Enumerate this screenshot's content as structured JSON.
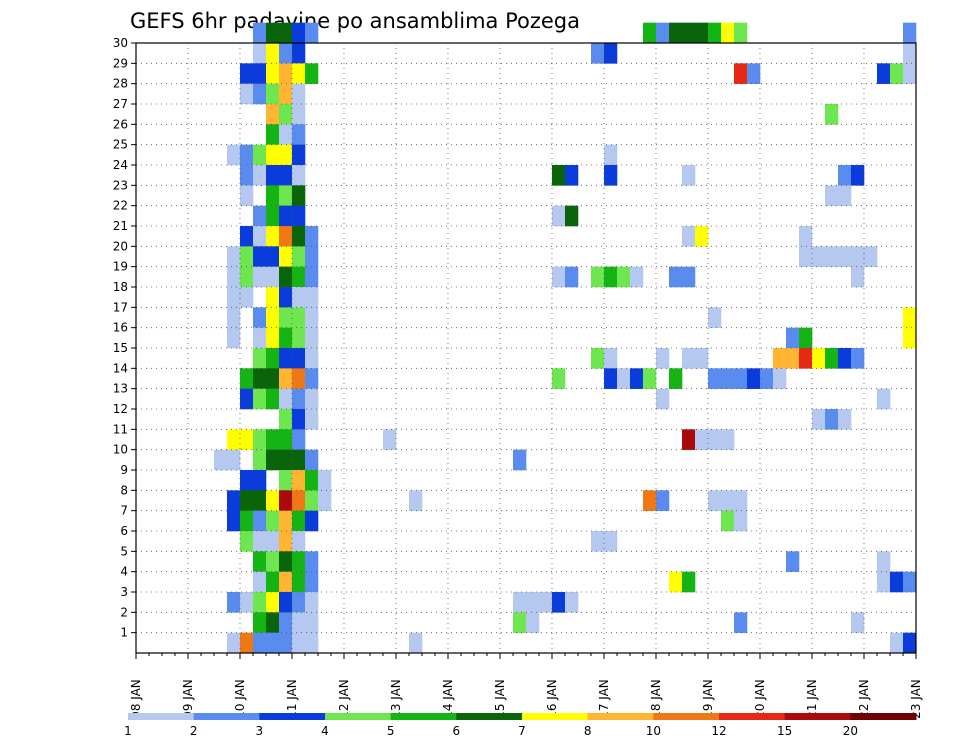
{
  "chart_data": {
    "type": "heatmap",
    "title": "GEFS 6hr padavine po ansamblima Pozega",
    "xlabel": "",
    "ylabel": "",
    "x_ticks": [
      "08 JAN",
      "09 JAN",
      "10 JAN",
      "11 JAN",
      "12 JAN",
      "13 JAN",
      "14 JAN",
      "15 JAN",
      "16 JAN",
      "17 JAN",
      "18 JAN",
      "19 JAN",
      "20 JAN",
      "21 JAN",
      "22 JAN",
      "23 JAN"
    ],
    "xlim": [
      0,
      60
    ],
    "y_ticks": [
      1,
      2,
      3,
      4,
      5,
      6,
      7,
      8,
      9,
      10,
      11,
      12,
      13,
      14,
      15,
      16,
      17,
      18,
      19,
      20,
      21,
      22,
      23,
      24,
      25,
      26,
      27,
      28,
      29,
      30
    ],
    "ylim": [
      0,
      30
    ],
    "grid": true,
    "legend": {
      "placement": "bottom",
      "labels": [
        "1",
        "2",
        "3",
        "4",
        "5",
        "6",
        "7",
        "8",
        "10",
        "12",
        "15",
        "20"
      ],
      "colors": [
        "#b4c8f0",
        "#5a8cf0",
        "#0a3cdc",
        "#6ee650",
        "#14b414",
        "#0a640a",
        "#ffff00",
        "#ffb432",
        "#f07814",
        "#e62814",
        "#aa0a0a",
        "#6e0000"
      ]
    },
    "levels": [
      {
        "level": 0,
        "color": "#b4c8f0"
      },
      {
        "level": 1,
        "color": "#5a8cf0"
      },
      {
        "level": 2,
        "color": "#0a3cdc"
      },
      {
        "level": 3,
        "color": "#6ee650"
      },
      {
        "level": 4,
        "color": "#14b414"
      },
      {
        "level": 5,
        "color": "#0a640a"
      },
      {
        "level": 6,
        "color": "#ffff00"
      },
      {
        "level": 7,
        "color": "#ffb432"
      },
      {
        "level": 8,
        "color": "#f07814"
      },
      {
        "level": 9,
        "color": "#e62814"
      },
      {
        "level": 10,
        "color": "#aa0a0a"
      },
      {
        "level": 11,
        "color": "#6e0000"
      }
    ],
    "members": [
      {
        "member": 30,
        "cells": [
          [
            9,
            1
          ],
          [
            10,
            5
          ],
          [
            11,
            5
          ],
          [
            12,
            2
          ],
          [
            13,
            1
          ],
          [
            39,
            4
          ],
          [
            40,
            1
          ],
          [
            41,
            5
          ],
          [
            42,
            5
          ],
          [
            43,
            5
          ],
          [
            44,
            4
          ],
          [
            45,
            6
          ],
          [
            46,
            3
          ],
          [
            59,
            1
          ]
        ]
      },
      {
        "member": 29,
        "cells": [
          [
            9,
            0
          ],
          [
            10,
            6
          ],
          [
            11,
            1
          ],
          [
            12,
            2
          ],
          [
            35,
            1
          ],
          [
            36,
            2
          ],
          [
            59,
            0
          ]
        ]
      },
      {
        "member": 28,
        "cells": [
          [
            8,
            2
          ],
          [
            9,
            2
          ],
          [
            10,
            6
          ],
          [
            11,
            7
          ],
          [
            12,
            6
          ],
          [
            13,
            4
          ],
          [
            46,
            9
          ],
          [
            47,
            1
          ],
          [
            57,
            2
          ],
          [
            58,
            3
          ],
          [
            59,
            0
          ]
        ]
      },
      {
        "member": 27,
        "cells": [
          [
            8,
            0
          ],
          [
            9,
            1
          ],
          [
            10,
            3
          ],
          [
            11,
            7
          ],
          [
            12,
            0
          ]
        ]
      },
      {
        "member": 26,
        "cells": [
          [
            10,
            7
          ],
          [
            11,
            3
          ],
          [
            12,
            0
          ],
          [
            53,
            3
          ]
        ]
      },
      {
        "member": 25,
        "cells": [
          [
            10,
            4
          ],
          [
            11,
            0
          ],
          [
            12,
            1
          ]
        ]
      },
      {
        "member": 24,
        "cells": [
          [
            7,
            0
          ],
          [
            8,
            1
          ],
          [
            9,
            3
          ],
          [
            10,
            6
          ],
          [
            11,
            6
          ],
          [
            12,
            2
          ],
          [
            36,
            0
          ]
        ]
      },
      {
        "member": 23,
        "cells": [
          [
            8,
            1
          ],
          [
            9,
            0
          ],
          [
            10,
            2
          ],
          [
            11,
            2
          ],
          [
            12,
            0
          ],
          [
            32,
            5
          ],
          [
            33,
            2
          ],
          [
            36,
            2
          ],
          [
            42,
            0
          ],
          [
            54,
            1
          ],
          [
            55,
            2
          ]
        ]
      },
      {
        "member": 22,
        "cells": [
          [
            8,
            0
          ],
          [
            10,
            4
          ],
          [
            11,
            3
          ],
          [
            12,
            5
          ],
          [
            53,
            0
          ],
          [
            54,
            0
          ]
        ]
      },
      {
        "member": 21,
        "cells": [
          [
            9,
            1
          ],
          [
            10,
            4
          ],
          [
            11,
            2
          ],
          [
            12,
            2
          ],
          [
            32,
            0
          ],
          [
            33,
            5
          ]
        ]
      },
      {
        "member": 20,
        "cells": [
          [
            8,
            2
          ],
          [
            9,
            0
          ],
          [
            10,
            6
          ],
          [
            11,
            8
          ],
          [
            12,
            5
          ],
          [
            13,
            1
          ],
          [
            42,
            0
          ],
          [
            43,
            6
          ],
          [
            51,
            0
          ]
        ]
      },
      {
        "member": 19,
        "cells": [
          [
            7,
            0
          ],
          [
            8,
            3
          ],
          [
            9,
            2
          ],
          [
            10,
            2
          ],
          [
            11,
            6
          ],
          [
            12,
            3
          ],
          [
            13,
            1
          ],
          [
            51,
            0
          ],
          [
            52,
            0
          ],
          [
            53,
            0
          ],
          [
            54,
            0
          ],
          [
            55,
            0
          ],
          [
            56,
            0
          ]
        ]
      },
      {
        "member": 18,
        "cells": [
          [
            7,
            0
          ],
          [
            8,
            3
          ],
          [
            9,
            0
          ],
          [
            10,
            0
          ],
          [
            11,
            5
          ],
          [
            12,
            4
          ],
          [
            13,
            1
          ],
          [
            32,
            0
          ],
          [
            33,
            1
          ],
          [
            35,
            3
          ],
          [
            36,
            4
          ],
          [
            37,
            3
          ],
          [
            38,
            0
          ],
          [
            41,
            1
          ],
          [
            42,
            1
          ],
          [
            55,
            0
          ]
        ]
      },
      {
        "member": 17,
        "cells": [
          [
            7,
            0
          ],
          [
            8,
            0
          ],
          [
            10,
            6
          ],
          [
            11,
            2
          ],
          [
            12,
            0
          ],
          [
            13,
            0
          ]
        ]
      },
      {
        "member": 16,
        "cells": [
          [
            7,
            0
          ],
          [
            9,
            1
          ],
          [
            10,
            6
          ],
          [
            11,
            3
          ],
          [
            12,
            3
          ],
          [
            13,
            0
          ],
          [
            44,
            0
          ],
          [
            59,
            6
          ]
        ]
      },
      {
        "member": 15,
        "cells": [
          [
            7,
            0
          ],
          [
            9,
            0
          ],
          [
            10,
            6
          ],
          [
            11,
            4
          ],
          [
            12,
            3
          ],
          [
            13,
            0
          ],
          [
            50,
            1
          ],
          [
            51,
            4
          ],
          [
            59,
            6
          ]
        ]
      },
      {
        "member": 14,
        "cells": [
          [
            9,
            3
          ],
          [
            10,
            4
          ],
          [
            11,
            2
          ],
          [
            12,
            2
          ],
          [
            13,
            0
          ],
          [
            35,
            3
          ],
          [
            36,
            0
          ],
          [
            40,
            0
          ],
          [
            42,
            0
          ],
          [
            43,
            0
          ],
          [
            49,
            7
          ],
          [
            50,
            7
          ],
          [
            51,
            9
          ],
          [
            52,
            6
          ],
          [
            53,
            4
          ],
          [
            54,
            2
          ],
          [
            55,
            1
          ]
        ]
      },
      {
        "member": 13,
        "cells": [
          [
            8,
            4
          ],
          [
            9,
            5
          ],
          [
            10,
            5
          ],
          [
            11,
            7
          ],
          [
            12,
            8
          ],
          [
            13,
            1
          ],
          [
            32,
            3
          ],
          [
            36,
            2
          ],
          [
            37,
            0
          ],
          [
            38,
            2
          ],
          [
            39,
            3
          ],
          [
            41,
            4
          ],
          [
            44,
            1
          ],
          [
            45,
            1
          ],
          [
            46,
            1
          ],
          [
            47,
            2
          ],
          [
            48,
            1
          ],
          [
            49,
            0
          ]
        ]
      },
      {
        "member": 12,
        "cells": [
          [
            8,
            2
          ],
          [
            9,
            3
          ],
          [
            10,
            4
          ],
          [
            11,
            0
          ],
          [
            12,
            1
          ],
          [
            13,
            0
          ],
          [
            40,
            0
          ],
          [
            57,
            0
          ]
        ]
      },
      {
        "member": 11,
        "cells": [
          [
            11,
            3
          ],
          [
            12,
            2
          ],
          [
            13,
            0
          ],
          [
            52,
            0
          ],
          [
            53,
            1
          ],
          [
            54,
            0
          ]
        ]
      },
      {
        "member": 10,
        "cells": [
          [
            7,
            6
          ],
          [
            8,
            6
          ],
          [
            9,
            3
          ],
          [
            10,
            4
          ],
          [
            11,
            4
          ],
          [
            12,
            1
          ],
          [
            19,
            0
          ],
          [
            42,
            10
          ],
          [
            43,
            0
          ],
          [
            44,
            0
          ],
          [
            45,
            0
          ]
        ]
      },
      {
        "member": 9,
        "cells": [
          [
            6,
            0
          ],
          [
            7,
            0
          ],
          [
            9,
            3
          ],
          [
            10,
            5
          ],
          [
            11,
            5
          ],
          [
            12,
            5
          ],
          [
            13,
            1
          ],
          [
            29,
            1
          ]
        ]
      },
      {
        "member": 8,
        "cells": [
          [
            8,
            2
          ],
          [
            9,
            2
          ],
          [
            11,
            3
          ],
          [
            12,
            7
          ],
          [
            13,
            4
          ],
          [
            14,
            0
          ]
        ]
      },
      {
        "member": 7,
        "cells": [
          [
            7,
            2
          ],
          [
            8,
            5
          ],
          [
            9,
            5
          ],
          [
            10,
            6
          ],
          [
            11,
            10
          ],
          [
            12,
            8
          ],
          [
            13,
            3
          ],
          [
            14,
            0
          ],
          [
            21,
            0
          ],
          [
            39,
            8
          ],
          [
            40,
            1
          ],
          [
            44,
            0
          ],
          [
            45,
            0
          ],
          [
            46,
            0
          ]
        ]
      },
      {
        "member": 6,
        "cells": [
          [
            7,
            2
          ],
          [
            8,
            4
          ],
          [
            9,
            1
          ],
          [
            10,
            3
          ],
          [
            11,
            7
          ],
          [
            12,
            4
          ],
          [
            13,
            2
          ],
          [
            45,
            3
          ],
          [
            46,
            0
          ]
        ]
      },
      {
        "member": 5,
        "cells": [
          [
            8,
            3
          ],
          [
            9,
            0
          ],
          [
            10,
            0
          ],
          [
            11,
            7
          ],
          [
            12,
            0
          ],
          [
            35,
            0
          ],
          [
            36,
            0
          ]
        ]
      },
      {
        "member": 4,
        "cells": [
          [
            9,
            4
          ],
          [
            10,
            3
          ],
          [
            11,
            5
          ],
          [
            12,
            4
          ],
          [
            13,
            1
          ],
          [
            50,
            1
          ],
          [
            57,
            0
          ]
        ]
      },
      {
        "member": 3,
        "cells": [
          [
            9,
            0
          ],
          [
            10,
            4
          ],
          [
            11,
            7
          ],
          [
            12,
            4
          ],
          [
            13,
            1
          ],
          [
            41,
            6
          ],
          [
            42,
            4
          ],
          [
            57,
            0
          ],
          [
            58,
            2
          ],
          [
            59,
            1
          ]
        ]
      },
      {
        "member": 2,
        "cells": [
          [
            7,
            1
          ],
          [
            8,
            0
          ],
          [
            9,
            3
          ],
          [
            10,
            6
          ],
          [
            11,
            2
          ],
          [
            12,
            1
          ],
          [
            13,
            0
          ],
          [
            29,
            0
          ],
          [
            30,
            0
          ],
          [
            31,
            0
          ],
          [
            32,
            2
          ],
          [
            33,
            0
          ]
        ]
      },
      {
        "member": 1,
        "cells": [
          [
            9,
            4
          ],
          [
            10,
            5
          ],
          [
            11,
            1
          ],
          [
            12,
            0
          ],
          [
            13,
            0
          ],
          [
            29,
            3
          ],
          [
            30,
            0
          ],
          [
            46,
            1
          ],
          [
            55,
            0
          ]
        ]
      },
      {
        "member": 0,
        "cells": [
          [
            7,
            0
          ],
          [
            8,
            8
          ],
          [
            9,
            1
          ],
          [
            10,
            1
          ],
          [
            11,
            1
          ],
          [
            12,
            0
          ],
          [
            13,
            0
          ],
          [
            21,
            0
          ],
          [
            58,
            0
          ],
          [
            59,
            2
          ]
        ]
      }
    ]
  }
}
